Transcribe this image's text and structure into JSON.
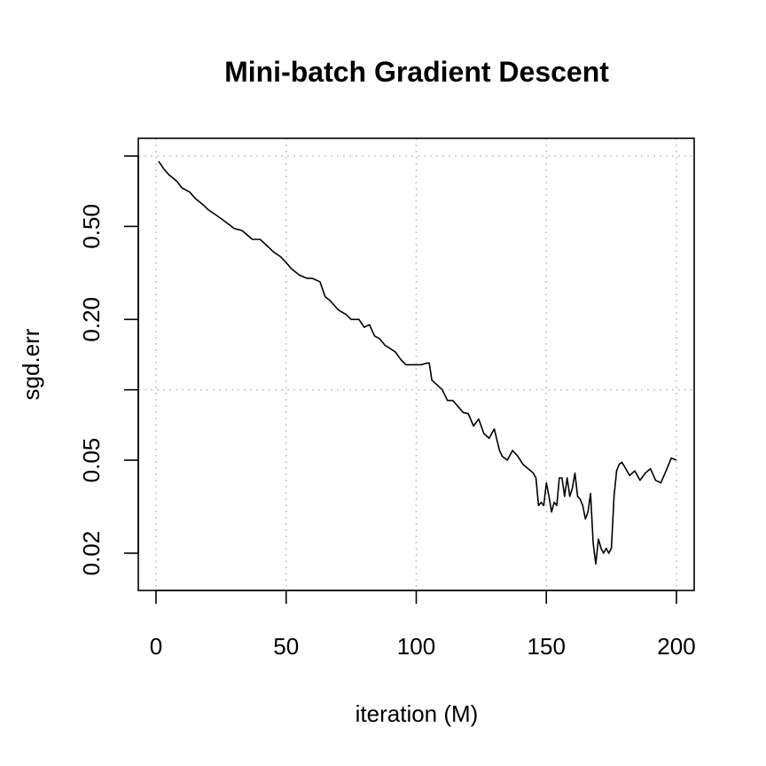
{
  "chart_data": {
    "type": "line",
    "title": "Mini-batch Gradient Descent",
    "xlabel": "iteration (M)",
    "ylabel": "sgd.err",
    "x_scale": "linear",
    "y_scale": "log",
    "xlim": [
      0,
      200
    ],
    "ylim": [
      0.0165,
      1.0
    ],
    "x_ticks": [
      {
        "value": 0,
        "label": "0"
      },
      {
        "value": 50,
        "label": "50"
      },
      {
        "value": 100,
        "label": "100"
      },
      {
        "value": 150,
        "label": "150"
      },
      {
        "value": 200,
        "label": "200"
      }
    ],
    "y_ticks": [
      {
        "value": 0.02,
        "label": "0.02"
      },
      {
        "value": 0.05,
        "label": "0.05"
      },
      {
        "value": 0.1,
        "label": ""
      },
      {
        "value": 0.2,
        "label": "0.20"
      },
      {
        "value": 0.5,
        "label": "0.50"
      },
      {
        "value": 1.0,
        "label": ""
      }
    ],
    "grid": true,
    "grid_style": "dotted",
    "line_color": "#000000",
    "grid_color": "#c8c8c8",
    "series": [
      {
        "x": [
          1,
          3,
          5,
          8,
          10,
          13,
          15,
          18,
          20,
          23,
          25,
          28,
          30,
          33,
          35,
          37,
          40,
          43,
          45,
          48,
          50,
          52,
          55,
          58,
          60,
          63,
          65,
          67,
          70,
          73,
          75,
          78,
          80,
          82,
          84,
          86,
          88,
          90,
          92,
          94,
          96,
          98,
          100,
          102,
          104,
          105,
          106,
          108,
          110,
          112,
          114,
          116,
          118,
          120,
          122,
          124,
          126,
          128,
          130,
          132,
          133,
          135,
          137,
          139,
          141,
          143,
          145,
          146,
          147,
          148,
          149,
          150,
          151,
          152,
          153,
          154,
          155,
          156,
          157,
          158,
          159,
          160,
          161,
          162,
          163,
          164,
          165,
          166,
          167,
          168,
          169,
          170,
          171,
          172,
          173,
          174,
          175,
          176,
          177,
          178,
          179,
          180,
          182,
          184,
          186,
          188,
          190,
          192,
          194,
          196,
          198,
          200
        ],
        "y": [
          0.95,
          0.88,
          0.83,
          0.78,
          0.73,
          0.7,
          0.66,
          0.62,
          0.59,
          0.56,
          0.54,
          0.51,
          0.49,
          0.48,
          0.46,
          0.44,
          0.44,
          0.41,
          0.39,
          0.37,
          0.35,
          0.33,
          0.31,
          0.3,
          0.3,
          0.29,
          0.25,
          0.24,
          0.22,
          0.21,
          0.2,
          0.2,
          0.185,
          0.19,
          0.17,
          0.165,
          0.155,
          0.15,
          0.145,
          0.135,
          0.128,
          0.128,
          0.128,
          0.128,
          0.13,
          0.13,
          0.11,
          0.105,
          0.1,
          0.09,
          0.09,
          0.085,
          0.08,
          0.079,
          0.07,
          0.075,
          0.065,
          0.062,
          0.068,
          0.055,
          0.052,
          0.05,
          0.055,
          0.052,
          0.048,
          0.046,
          0.044,
          0.042,
          0.032,
          0.033,
          0.032,
          0.04,
          0.035,
          0.03,
          0.033,
          0.032,
          0.042,
          0.042,
          0.035,
          0.042,
          0.035,
          0.038,
          0.044,
          0.035,
          0.034,
          0.032,
          0.028,
          0.03,
          0.036,
          0.022,
          0.018,
          0.023,
          0.021,
          0.02,
          0.021,
          0.02,
          0.021,
          0.035,
          0.045,
          0.048,
          0.049,
          0.047,
          0.043,
          0.045,
          0.041,
          0.044,
          0.046,
          0.041,
          0.04,
          0.045,
          0.051,
          0.05
        ]
      }
    ]
  }
}
